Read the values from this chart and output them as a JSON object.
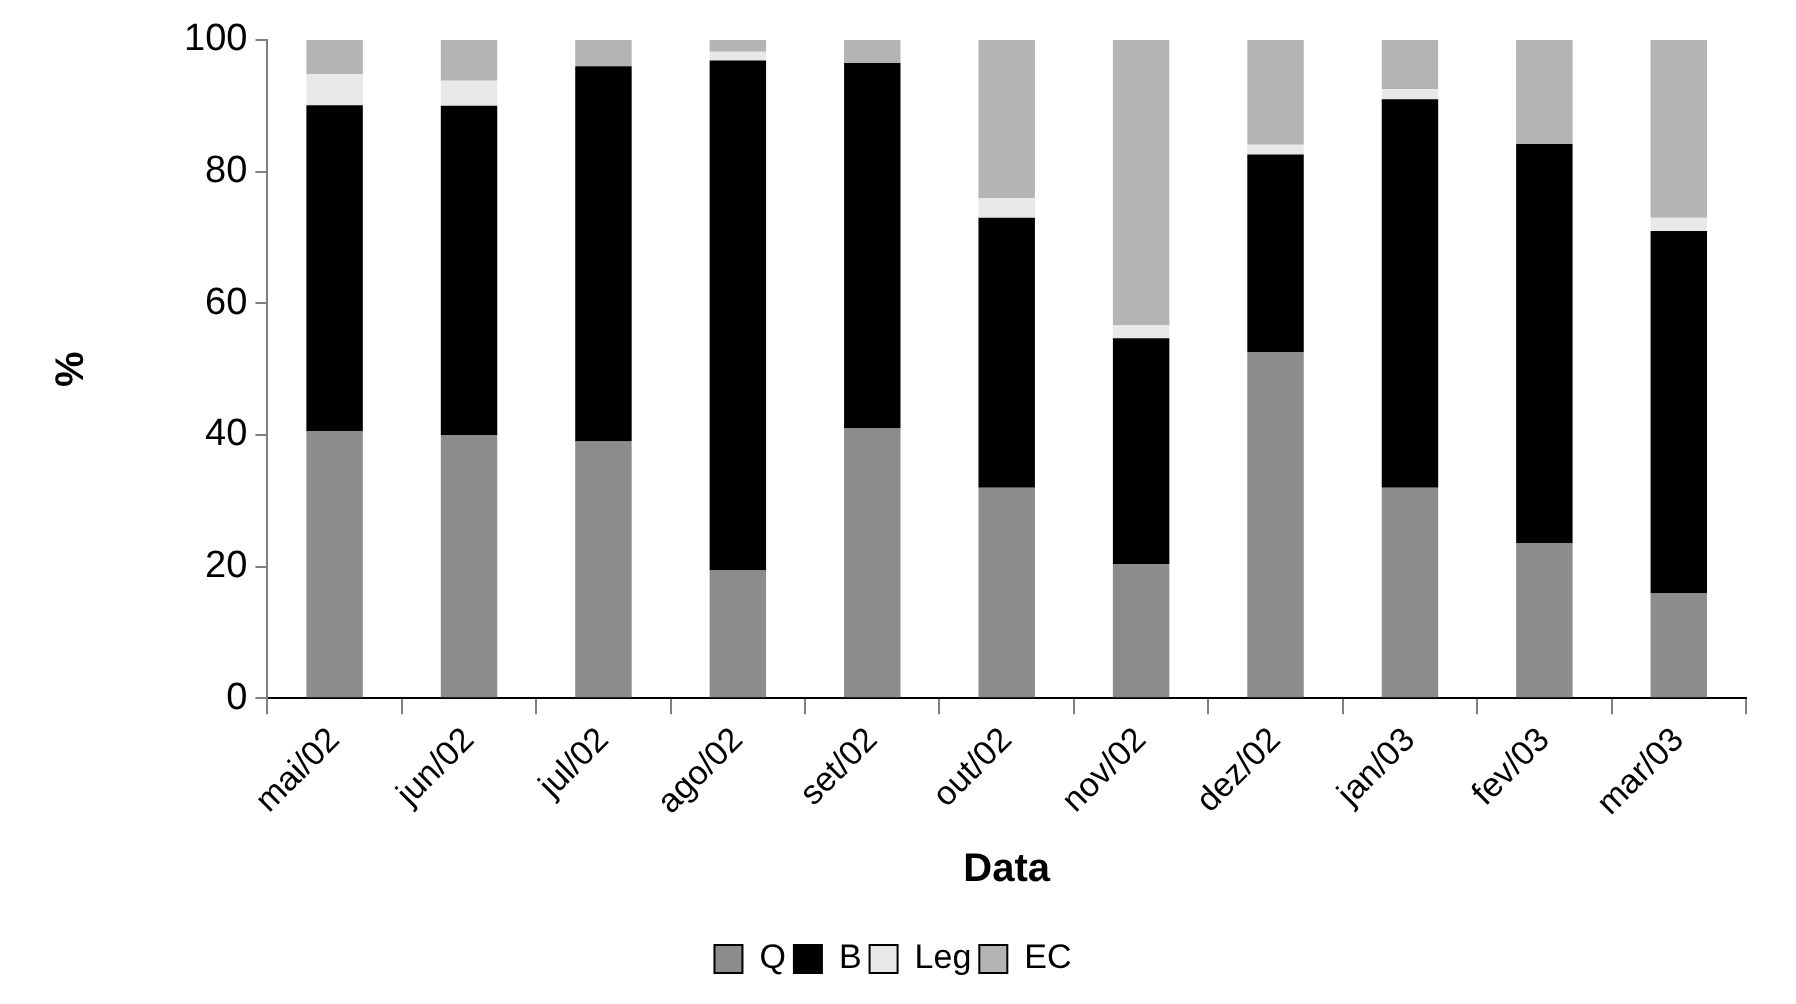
{
  "chart_data": {
    "type": "bar",
    "stacked": true,
    "xlabel": "Data",
    "ylabel": "%",
    "categories": [
      "mai/02",
      "jun/02",
      "jul/02",
      "ago/02",
      "set/02",
      "out/02",
      "nov/02",
      "dez/02",
      "jan/03",
      "fev/03",
      "mar/03"
    ],
    "series": [
      {
        "name": "Q",
        "color": "#8c8c8c",
        "values": [
          40.6,
          40,
          39,
          19.4,
          41,
          32,
          20.4,
          52.6,
          32,
          23.6,
          16
        ]
      },
      {
        "name": "B",
        "color": "#000000",
        "values": [
          49.5,
          50,
          57,
          77.5,
          55.5,
          41,
          34.3,
          30,
          59,
          60.6,
          55
        ]
      },
      {
        "name": "Leg",
        "color": "#e8e8e8",
        "values": [
          4.7,
          3.8,
          0,
          1.3,
          0,
          3,
          2,
          1.5,
          1.5,
          0,
          2
        ]
      },
      {
        "name": "EC",
        "color": "#b4b4b4",
        "values": [
          5.2,
          6.2,
          4,
          1.8,
          3.5,
          24,
          43.3,
          15.9,
          7.5,
          15.8,
          27
        ]
      }
    ],
    "ylim": [
      0,
      100
    ],
    "yticks": [
      0,
      20,
      40,
      60,
      80,
      100
    ],
    "grid": false,
    "legend": "bottom"
  }
}
